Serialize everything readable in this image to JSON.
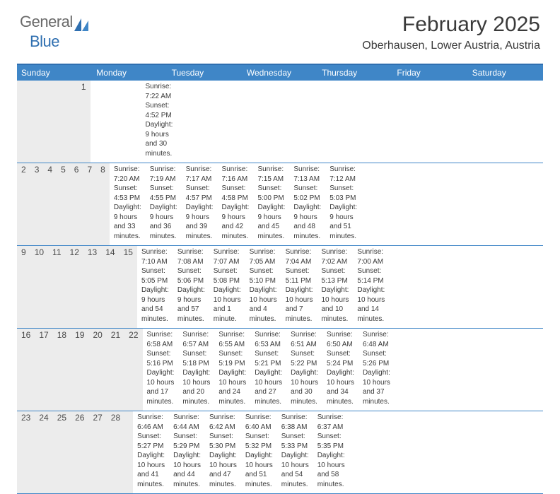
{
  "logo": {
    "word1": "General",
    "word2": "Blue"
  },
  "title": "February 2025",
  "location": "Oberhausen, Lower Austria, Austria",
  "colors": {
    "header_bg": "#3f86c7",
    "header_text": "#ffffff",
    "border": "#2f6fb0",
    "daynum_bg": "#ececec",
    "text": "#3a3a3a",
    "logo_gray": "#6a6a6a",
    "logo_blue": "#2f6fb0"
  },
  "day_names": [
    "Sunday",
    "Monday",
    "Tuesday",
    "Wednesday",
    "Thursday",
    "Friday",
    "Saturday"
  ],
  "weeks": [
    [
      {
        "n": "",
        "sunrise": "",
        "sunset": "",
        "daylight": ""
      },
      {
        "n": "",
        "sunrise": "",
        "sunset": "",
        "daylight": ""
      },
      {
        "n": "",
        "sunrise": "",
        "sunset": "",
        "daylight": ""
      },
      {
        "n": "",
        "sunrise": "",
        "sunset": "",
        "daylight": ""
      },
      {
        "n": "",
        "sunrise": "",
        "sunset": "",
        "daylight": ""
      },
      {
        "n": "",
        "sunrise": "",
        "sunset": "",
        "daylight": ""
      },
      {
        "n": "1",
        "sunrise": "Sunrise: 7:22 AM",
        "sunset": "Sunset: 4:52 PM",
        "daylight": "Daylight: 9 hours and 30 minutes."
      }
    ],
    [
      {
        "n": "2",
        "sunrise": "Sunrise: 7:20 AM",
        "sunset": "Sunset: 4:53 PM",
        "daylight": "Daylight: 9 hours and 33 minutes."
      },
      {
        "n": "3",
        "sunrise": "Sunrise: 7:19 AM",
        "sunset": "Sunset: 4:55 PM",
        "daylight": "Daylight: 9 hours and 36 minutes."
      },
      {
        "n": "4",
        "sunrise": "Sunrise: 7:17 AM",
        "sunset": "Sunset: 4:57 PM",
        "daylight": "Daylight: 9 hours and 39 minutes."
      },
      {
        "n": "5",
        "sunrise": "Sunrise: 7:16 AM",
        "sunset": "Sunset: 4:58 PM",
        "daylight": "Daylight: 9 hours and 42 minutes."
      },
      {
        "n": "6",
        "sunrise": "Sunrise: 7:15 AM",
        "sunset": "Sunset: 5:00 PM",
        "daylight": "Daylight: 9 hours and 45 minutes."
      },
      {
        "n": "7",
        "sunrise": "Sunrise: 7:13 AM",
        "sunset": "Sunset: 5:02 PM",
        "daylight": "Daylight: 9 hours and 48 minutes."
      },
      {
        "n": "8",
        "sunrise": "Sunrise: 7:12 AM",
        "sunset": "Sunset: 5:03 PM",
        "daylight": "Daylight: 9 hours and 51 minutes."
      }
    ],
    [
      {
        "n": "9",
        "sunrise": "Sunrise: 7:10 AM",
        "sunset": "Sunset: 5:05 PM",
        "daylight": "Daylight: 9 hours and 54 minutes."
      },
      {
        "n": "10",
        "sunrise": "Sunrise: 7:08 AM",
        "sunset": "Sunset: 5:06 PM",
        "daylight": "Daylight: 9 hours and 57 minutes."
      },
      {
        "n": "11",
        "sunrise": "Sunrise: 7:07 AM",
        "sunset": "Sunset: 5:08 PM",
        "daylight": "Daylight: 10 hours and 1 minute."
      },
      {
        "n": "12",
        "sunrise": "Sunrise: 7:05 AM",
        "sunset": "Sunset: 5:10 PM",
        "daylight": "Daylight: 10 hours and 4 minutes."
      },
      {
        "n": "13",
        "sunrise": "Sunrise: 7:04 AM",
        "sunset": "Sunset: 5:11 PM",
        "daylight": "Daylight: 10 hours and 7 minutes."
      },
      {
        "n": "14",
        "sunrise": "Sunrise: 7:02 AM",
        "sunset": "Sunset: 5:13 PM",
        "daylight": "Daylight: 10 hours and 10 minutes."
      },
      {
        "n": "15",
        "sunrise": "Sunrise: 7:00 AM",
        "sunset": "Sunset: 5:14 PM",
        "daylight": "Daylight: 10 hours and 14 minutes."
      }
    ],
    [
      {
        "n": "16",
        "sunrise": "Sunrise: 6:58 AM",
        "sunset": "Sunset: 5:16 PM",
        "daylight": "Daylight: 10 hours and 17 minutes."
      },
      {
        "n": "17",
        "sunrise": "Sunrise: 6:57 AM",
        "sunset": "Sunset: 5:18 PM",
        "daylight": "Daylight: 10 hours and 20 minutes."
      },
      {
        "n": "18",
        "sunrise": "Sunrise: 6:55 AM",
        "sunset": "Sunset: 5:19 PM",
        "daylight": "Daylight: 10 hours and 24 minutes."
      },
      {
        "n": "19",
        "sunrise": "Sunrise: 6:53 AM",
        "sunset": "Sunset: 5:21 PM",
        "daylight": "Daylight: 10 hours and 27 minutes."
      },
      {
        "n": "20",
        "sunrise": "Sunrise: 6:51 AM",
        "sunset": "Sunset: 5:22 PM",
        "daylight": "Daylight: 10 hours and 30 minutes."
      },
      {
        "n": "21",
        "sunrise": "Sunrise: 6:50 AM",
        "sunset": "Sunset: 5:24 PM",
        "daylight": "Daylight: 10 hours and 34 minutes."
      },
      {
        "n": "22",
        "sunrise": "Sunrise: 6:48 AM",
        "sunset": "Sunset: 5:26 PM",
        "daylight": "Daylight: 10 hours and 37 minutes."
      }
    ],
    [
      {
        "n": "23",
        "sunrise": "Sunrise: 6:46 AM",
        "sunset": "Sunset: 5:27 PM",
        "daylight": "Daylight: 10 hours and 41 minutes."
      },
      {
        "n": "24",
        "sunrise": "Sunrise: 6:44 AM",
        "sunset": "Sunset: 5:29 PM",
        "daylight": "Daylight: 10 hours and 44 minutes."
      },
      {
        "n": "25",
        "sunrise": "Sunrise: 6:42 AM",
        "sunset": "Sunset: 5:30 PM",
        "daylight": "Daylight: 10 hours and 47 minutes."
      },
      {
        "n": "26",
        "sunrise": "Sunrise: 6:40 AM",
        "sunset": "Sunset: 5:32 PM",
        "daylight": "Daylight: 10 hours and 51 minutes."
      },
      {
        "n": "27",
        "sunrise": "Sunrise: 6:38 AM",
        "sunset": "Sunset: 5:33 PM",
        "daylight": "Daylight: 10 hours and 54 minutes."
      },
      {
        "n": "28",
        "sunrise": "Sunrise: 6:37 AM",
        "sunset": "Sunset: 5:35 PM",
        "daylight": "Daylight: 10 hours and 58 minutes."
      },
      {
        "n": "",
        "sunrise": "",
        "sunset": "",
        "daylight": ""
      }
    ]
  ]
}
